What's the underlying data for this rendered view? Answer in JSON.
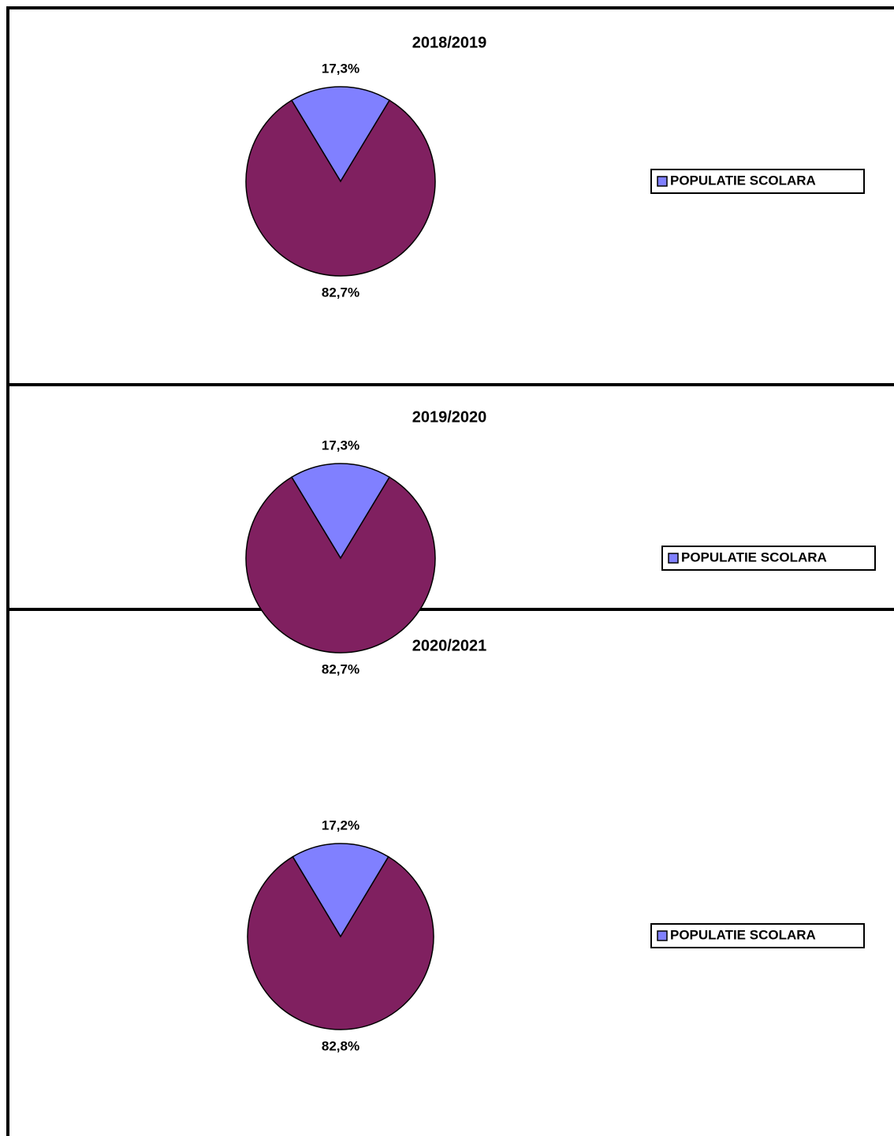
{
  "chart_data": [
    {
      "type": "pie",
      "title": "2018/2019",
      "categories": [
        "POPULATIE SCOLARA",
        null
      ],
      "values": [
        17.3,
        82.7
      ],
      "value_labels": [
        "17,3%",
        "82,7%"
      ],
      "colors": [
        "#8080ff",
        "#802060"
      ],
      "legend": "right"
    },
    {
      "type": "pie",
      "title": "2019/2020",
      "categories": [
        "POPULATIE SCOLARA",
        null
      ],
      "values": [
        17.3,
        82.7
      ],
      "value_labels": [
        "17,3%",
        "82,7%"
      ],
      "colors": [
        "#8080ff",
        "#802060"
      ],
      "legend": "right"
    },
    {
      "type": "pie",
      "title": "2020/2021",
      "categories": [
        "POPULATIE SCOLARA",
        null
      ],
      "values": [
        17.2,
        82.8
      ],
      "value_labels": [
        "17,2%",
        "82,8%"
      ],
      "colors": [
        "#8080ff",
        "#802060"
      ],
      "legend": "right"
    }
  ]
}
